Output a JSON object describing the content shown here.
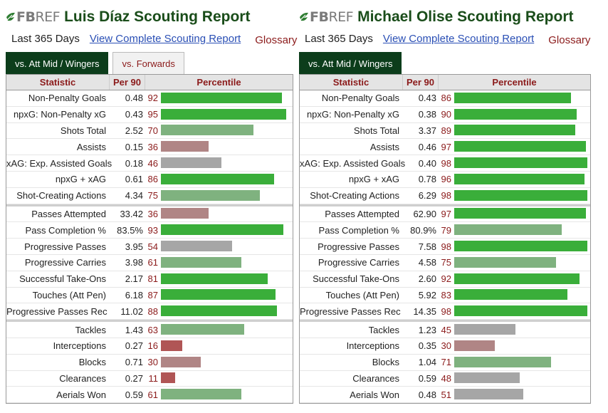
{
  "reports": [
    {
      "logo_fb": "FB",
      "logo_ref": "REF",
      "title": "Luis Díaz Scouting Report",
      "period": "Last 365 Days",
      "view_link": "View Complete Scouting Report",
      "glossary": "Glossary",
      "tabs": [
        {
          "label": "vs. Att Mid / Wingers",
          "active": true
        },
        {
          "label": "vs. Forwards",
          "active": false
        }
      ],
      "headers": {
        "statistic": "Statistic",
        "per90": "Per 90",
        "percentile": "Percentile"
      },
      "groups": [
        [
          {
            "stat": "Non-Penalty Goals",
            "per90": "0.48",
            "pct": "92",
            "value": 92
          },
          {
            "stat": "npxG: Non-Penalty xG",
            "per90": "0.43",
            "pct": "95",
            "value": 95
          },
          {
            "stat": "Shots Total",
            "per90": "2.52",
            "pct": "70",
            "value": 70
          },
          {
            "stat": "Assists",
            "per90": "0.15",
            "pct": "36",
            "value": 36
          },
          {
            "stat": "xAG: Exp. Assisted Goals",
            "per90": "0.18",
            "pct": "46",
            "value": 46
          },
          {
            "stat": "npxG + xAG",
            "per90": "0.61",
            "pct": "86",
            "value": 86
          },
          {
            "stat": "Shot-Creating Actions",
            "per90": "4.34",
            "pct": "75",
            "value": 75
          }
        ],
        [
          {
            "stat": "Passes Attempted",
            "per90": "33.42",
            "pct": "36",
            "value": 36
          },
          {
            "stat": "Pass Completion %",
            "per90": "83.5%",
            "pct": "93",
            "value": 93
          },
          {
            "stat": "Progressive Passes",
            "per90": "3.95",
            "pct": "54",
            "value": 54
          },
          {
            "stat": "Progressive Carries",
            "per90": "3.98",
            "pct": "61",
            "value": 61
          },
          {
            "stat": "Successful Take-Ons",
            "per90": "2.17",
            "pct": "81",
            "value": 81
          },
          {
            "stat": "Touches (Att Pen)",
            "per90": "6.18",
            "pct": "87",
            "value": 87
          },
          {
            "stat": "Progressive Passes Rec",
            "per90": "11.02",
            "pct": "88",
            "value": 88
          }
        ],
        [
          {
            "stat": "Tackles",
            "per90": "1.43",
            "pct": "63",
            "value": 63
          },
          {
            "stat": "Interceptions",
            "per90": "0.27",
            "pct": "16",
            "value": 16
          },
          {
            "stat": "Blocks",
            "per90": "0.71",
            "pct": "30",
            "value": 30
          },
          {
            "stat": "Clearances",
            "per90": "0.27",
            "pct": "11",
            "value": 11
          },
          {
            "stat": "Aerials Won",
            "per90": "0.59",
            "pct": "61",
            "value": 61
          }
        ]
      ]
    },
    {
      "logo_fb": "FB",
      "logo_ref": "REF",
      "title": "Michael Olise Scouting Report",
      "period": "Last 365 Days",
      "view_link": "View Complete Scouting Report",
      "glossary": "Glossary",
      "tabs": [
        {
          "label": "vs. Att Mid / Wingers",
          "active": true
        }
      ],
      "headers": {
        "statistic": "Statistic",
        "per90": "Per 90",
        "percentile": "Percentile"
      },
      "groups": [
        [
          {
            "stat": "Non-Penalty Goals",
            "per90": "0.43",
            "pct": "86",
            "value": 86
          },
          {
            "stat": "npxG: Non-Penalty xG",
            "per90": "0.38",
            "pct": "90",
            "value": 90
          },
          {
            "stat": "Shots Total",
            "per90": "3.37",
            "pct": "89",
            "value": 89
          },
          {
            "stat": "Assists",
            "per90": "0.46",
            "pct": "97",
            "value": 97
          },
          {
            "stat": "xAG: Exp. Assisted Goals",
            "per90": "0.40",
            "pct": "98",
            "value": 98
          },
          {
            "stat": "npxG + xAG",
            "per90": "0.78",
            "pct": "96",
            "value": 96
          },
          {
            "stat": "Shot-Creating Actions",
            "per90": "6.29",
            "pct": "98",
            "value": 98
          }
        ],
        [
          {
            "stat": "Passes Attempted",
            "per90": "62.90",
            "pct": "97",
            "value": 97
          },
          {
            "stat": "Pass Completion %",
            "per90": "80.9%",
            "pct": "79",
            "value": 79
          },
          {
            "stat": "Progressive Passes",
            "per90": "7.58",
            "pct": "98",
            "value": 98
          },
          {
            "stat": "Progressive Carries",
            "per90": "4.58",
            "pct": "75",
            "value": 75
          },
          {
            "stat": "Successful Take-Ons",
            "per90": "2.60",
            "pct": "92",
            "value": 92
          },
          {
            "stat": "Touches (Att Pen)",
            "per90": "5.92",
            "pct": "83",
            "value": 83
          },
          {
            "stat": "Progressive Passes Rec",
            "per90": "14.35",
            "pct": "98",
            "value": 98
          }
        ],
        [
          {
            "stat": "Tackles",
            "per90": "1.23",
            "pct": "45",
            "value": 45
          },
          {
            "stat": "Interceptions",
            "per90": "0.35",
            "pct": "30",
            "value": 30
          },
          {
            "stat": "Blocks",
            "per90": "1.04",
            "pct": "71",
            "value": 71
          },
          {
            "stat": "Clearances",
            "per90": "0.59",
            "pct": "48",
            "value": 48
          },
          {
            "stat": "Aerials Won",
            "per90": "0.48",
            "pct": "51",
            "value": 51
          }
        ]
      ]
    }
  ],
  "colors": {
    "brand_green": "#0c3d1b",
    "title_green": "#1a4d1a",
    "link_blue": "#2a4fb5",
    "accent_red": "#8b1a1a"
  }
}
